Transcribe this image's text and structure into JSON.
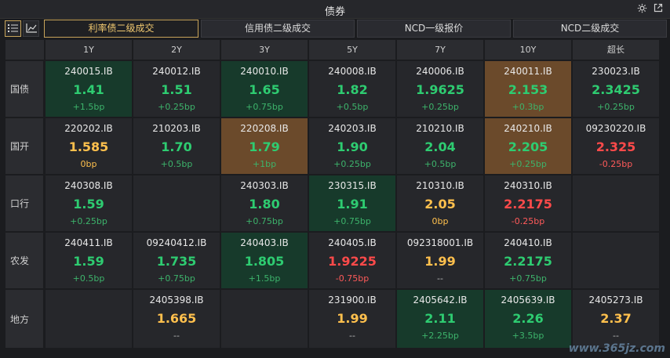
{
  "window": {
    "title": "债券"
  },
  "tabs": [
    {
      "label": "利率债二级成交",
      "active": true
    },
    {
      "label": "信用债二级成交",
      "active": false
    },
    {
      "label": "NCD一级报价",
      "active": false
    },
    {
      "label": "NCD二级成交",
      "active": false
    }
  ],
  "columns": [
    "1Y",
    "2Y",
    "3Y",
    "5Y",
    "7Y",
    "10Y",
    "超长"
  ],
  "rows": [
    {
      "label": "国债",
      "cells": [
        {
          "code": "240015.IB",
          "yield": "1.41",
          "change": "+1.5bp",
          "bg": "green",
          "yc": "green",
          "cc": "gdelta"
        },
        {
          "code": "240012.IB",
          "yield": "1.51",
          "change": "+0.25bp",
          "bg": "",
          "yc": "green",
          "cc": "gdelta"
        },
        {
          "code": "240010.IB",
          "yield": "1.65",
          "change": "+0.75bp",
          "bg": "green",
          "yc": "green",
          "cc": "gdelta"
        },
        {
          "code": "240008.IB",
          "yield": "1.82",
          "change": "+0.5bp",
          "bg": "",
          "yc": "green",
          "cc": "gdelta"
        },
        {
          "code": "240006.IB",
          "yield": "1.9625",
          "change": "+0.25bp",
          "bg": "",
          "yc": "green",
          "cc": "gdelta"
        },
        {
          "code": "240011.IB",
          "yield": "2.153",
          "change": "+0.3bp",
          "bg": "orange",
          "yc": "green",
          "cc": "gdelta"
        },
        {
          "code": "230023.IB",
          "yield": "2.3425",
          "change": "+0.25bp",
          "bg": "",
          "yc": "green",
          "cc": "gdelta"
        }
      ]
    },
    {
      "label": "国开",
      "cells": [
        {
          "code": "220202.IB",
          "yield": "1.585",
          "change": "0bp",
          "bg": "",
          "yc": "yellow",
          "cc": "yellow"
        },
        {
          "code": "210203.IB",
          "yield": "1.70",
          "change": "+0.5bp",
          "bg": "",
          "yc": "green",
          "cc": "gdelta"
        },
        {
          "code": "220208.IB",
          "yield": "1.79",
          "change": "+1bp",
          "bg": "orange",
          "yc": "green",
          "cc": "gdelta"
        },
        {
          "code": "240203.IB",
          "yield": "1.90",
          "change": "+0.25bp",
          "bg": "",
          "yc": "green",
          "cc": "gdelta"
        },
        {
          "code": "210210.IB",
          "yield": "2.04",
          "change": "+0.5bp",
          "bg": "",
          "yc": "green",
          "cc": "gdelta"
        },
        {
          "code": "240210.IB",
          "yield": "2.205",
          "change": "+0.25bp",
          "bg": "orange",
          "yc": "green",
          "cc": "gdelta"
        },
        {
          "code": "09230220.IB",
          "yield": "2.325",
          "change": "-0.25bp",
          "bg": "",
          "yc": "red",
          "cc": "rdelta"
        }
      ]
    },
    {
      "label": "口行",
      "cells": [
        {
          "code": "240308.IB",
          "yield": "1.59",
          "change": "+0.25bp",
          "bg": "",
          "yc": "green",
          "cc": "gdelta"
        },
        null,
        {
          "code": "240303.IB",
          "yield": "1.80",
          "change": "+0.75bp",
          "bg": "",
          "yc": "green",
          "cc": "gdelta"
        },
        {
          "code": "230315.IB",
          "yield": "1.91",
          "change": "+0.75bp",
          "bg": "green",
          "yc": "green",
          "cc": "gdelta"
        },
        {
          "code": "210310.IB",
          "yield": "2.05",
          "change": "0bp",
          "bg": "",
          "yc": "yellow",
          "cc": "yellow"
        },
        {
          "code": "240310.IB",
          "yield": "2.2175",
          "change": "-0.25bp",
          "bg": "",
          "yc": "red",
          "cc": "rdelta"
        },
        null
      ]
    },
    {
      "label": "农发",
      "cells": [
        {
          "code": "240411.IB",
          "yield": "1.59",
          "change": "+0.5bp",
          "bg": "",
          "yc": "green",
          "cc": "gdelta"
        },
        {
          "code": "09240412.IB",
          "yield": "1.735",
          "change": "+0.75bp",
          "bg": "",
          "yc": "green",
          "cc": "gdelta"
        },
        {
          "code": "240403.IB",
          "yield": "1.805",
          "change": "+1.5bp",
          "bg": "green",
          "yc": "green",
          "cc": "gdelta"
        },
        {
          "code": "240405.IB",
          "yield": "1.9225",
          "change": "-0.75bp",
          "bg": "",
          "yc": "red",
          "cc": "rdelta"
        },
        {
          "code": "092318001.IB",
          "yield": "1.99",
          "change": "--",
          "bg": "",
          "yc": "yellow",
          "cc": "grey"
        },
        {
          "code": "240410.IB",
          "yield": "2.2175",
          "change": "+0.75bp",
          "bg": "",
          "yc": "green",
          "cc": "gdelta"
        },
        null
      ]
    },
    {
      "label": "地方",
      "cells": [
        null,
        {
          "code": "2405398.IB",
          "yield": "1.665",
          "change": "--",
          "bg": "",
          "yc": "yellow",
          "cc": "grey"
        },
        null,
        {
          "code": "231900.IB",
          "yield": "1.99",
          "change": "--",
          "bg": "",
          "yc": "yellow",
          "cc": "grey"
        },
        {
          "code": "2405642.IB",
          "yield": "2.11",
          "change": "+2.25bp",
          "bg": "green",
          "yc": "green",
          "cc": "gdelta"
        },
        {
          "code": "2405639.IB",
          "yield": "2.26",
          "change": "+3.5bp",
          "bg": "green",
          "yc": "green",
          "cc": "gdelta"
        },
        {
          "code": "2405273.IB",
          "yield": "2.37",
          "change": "--",
          "bg": "",
          "yc": "yellow",
          "cc": "grey"
        }
      ]
    }
  ],
  "watermark": "www.365jz.com",
  "icons": {
    "settings": "gear-icon",
    "popout": "external-link-icon",
    "list_view": "list-icon",
    "chart_view": "chart-icon"
  }
}
